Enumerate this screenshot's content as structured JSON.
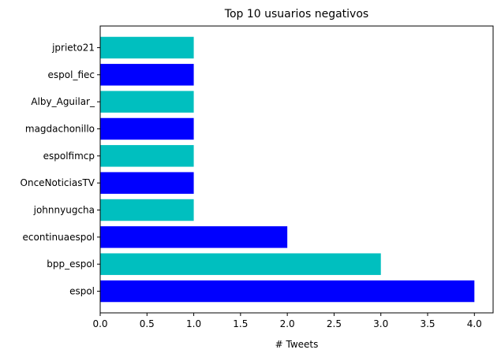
{
  "chart_data": {
    "type": "bar",
    "orientation": "horizontal",
    "title": "Top 10 usuarios negativos",
    "xlabel": "# Tweets",
    "ylabel": "",
    "categories": [
      "espol",
      "bpp_espol",
      "econtinuaespol",
      "johnnyugcha",
      "OnceNoticiasTV",
      "espolfimcp",
      "magdachonillo",
      "Alby_Aguilar_",
      "espol_fiec",
      "jprieto21"
    ],
    "values": [
      4,
      3,
      2,
      1,
      1,
      1,
      1,
      1,
      1,
      1
    ],
    "bar_colors": [
      "#0000ff",
      "#00bfbf",
      "#0000ff",
      "#00bfbf",
      "#0000ff",
      "#00bfbf",
      "#0000ff",
      "#00bfbf",
      "#0000ff",
      "#00bfbf"
    ],
    "xlim": [
      0,
      4.2
    ],
    "xticks": [
      "0.0",
      "0.5",
      "1.0",
      "1.5",
      "2.0",
      "2.5",
      "3.0",
      "3.5",
      "4.0"
    ],
    "grid": false,
    "legend": "none"
  }
}
